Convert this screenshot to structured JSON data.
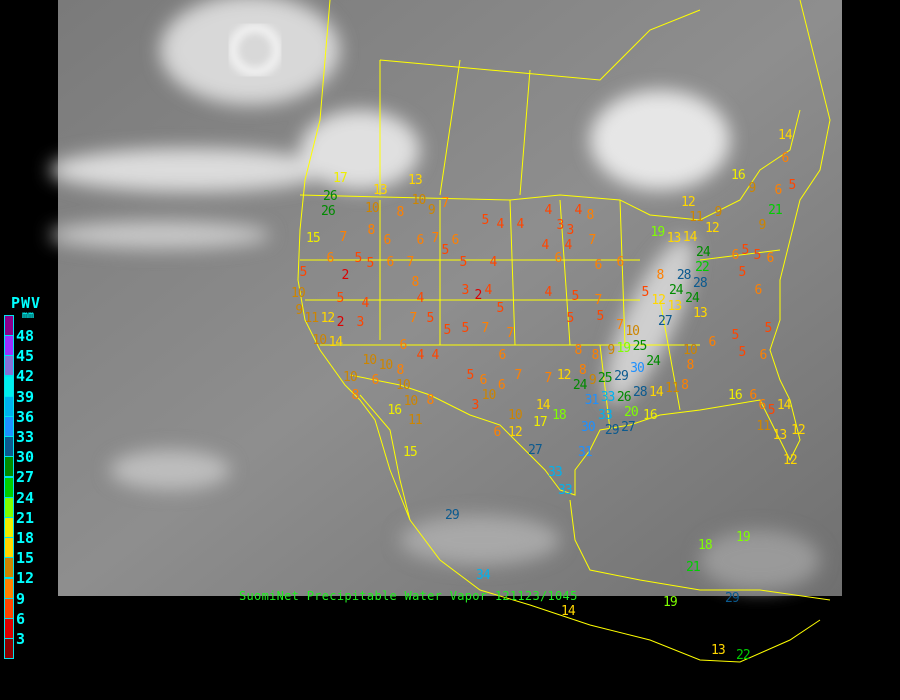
{
  "legend": {
    "title": "PWV",
    "unit": "mm",
    "bins": [
      {
        "label": "48",
        "color": "#8b008b"
      },
      {
        "label": "45",
        "color": "#9b30ff"
      },
      {
        "label": "42",
        "color": "#8470d8"
      },
      {
        "label": "39",
        "color": "#00eeee"
      },
      {
        "label": "36",
        "color": "#00b2ee"
      },
      {
        "label": "33",
        "color": "#1e90ff"
      },
      {
        "label": "30",
        "color": "#0b5a8f"
      },
      {
        "label": "27",
        "color": "#008b00"
      },
      {
        "label": "24",
        "color": "#00cd00"
      },
      {
        "label": "21",
        "color": "#7fff00"
      },
      {
        "label": "18",
        "color": "#eeee00"
      },
      {
        "label": "15",
        "color": "#ffd700"
      },
      {
        "label": "12",
        "color": "#cd8500"
      },
      {
        "label": "9",
        "color": "#ff8000"
      },
      {
        "label": "6",
        "color": "#ff4500"
      },
      {
        "label": "3",
        "color": "#dd0000"
      },
      {
        "label": "",
        "color": "#8b0000"
      }
    ]
  },
  "caption": "SuomiNet Precipitable Water Vapor 121123/1045",
  "boundary_color": "#ffff00",
  "station_values": [
    17,
    26,
    26,
    15,
    5,
    10,
    9,
    11,
    12,
    2,
    10,
    14,
    10,
    8,
    13,
    10,
    6,
    2,
    5,
    4,
    3,
    7,
    8,
    5,
    5,
    6,
    6,
    7,
    8,
    4,
    7,
    5,
    5,
    5,
    7,
    7,
    6,
    7,
    6,
    5,
    5,
    5,
    4,
    4,
    4,
    3,
    3,
    4,
    8,
    7,
    4,
    4,
    6,
    6,
    6,
    4,
    3,
    2,
    4,
    5,
    4,
    5,
    7,
    5,
    5,
    4,
    4,
    5,
    6,
    10,
    3,
    6,
    6,
    7,
    7,
    12,
    8,
    8,
    9,
    8,
    9,
    19,
    25,
    30,
    24,
    24,
    25,
    29,
    33,
    31,
    33,
    30,
    29,
    27,
    26,
    20,
    28,
    14,
    11,
    8,
    16,
    10,
    12,
    17,
    18,
    14,
    6,
    27,
    33,
    31,
    33,
    15,
    29,
    34,
    14,
    19,
    18,
    21,
    19,
    29,
    13,
    22,
    16,
    10,
    10,
    8,
    11,
    6,
    10,
    8,
    10,
    6,
    10,
    8,
    6,
    5,
    5,
    6,
    5,
    16,
    6,
    6,
    5,
    11,
    14,
    12,
    12,
    13,
    19,
    13,
    14,
    24,
    22,
    28,
    28,
    24,
    24,
    27,
    12,
    5,
    8,
    7,
    10,
    13,
    13,
    6,
    5,
    5,
    5,
    6,
    9,
    12,
    12,
    11,
    16,
    9,
    6,
    5,
    6,
    14,
    21,
    9,
    6,
    13,
    10,
    9,
    7,
    8
  ]
}
